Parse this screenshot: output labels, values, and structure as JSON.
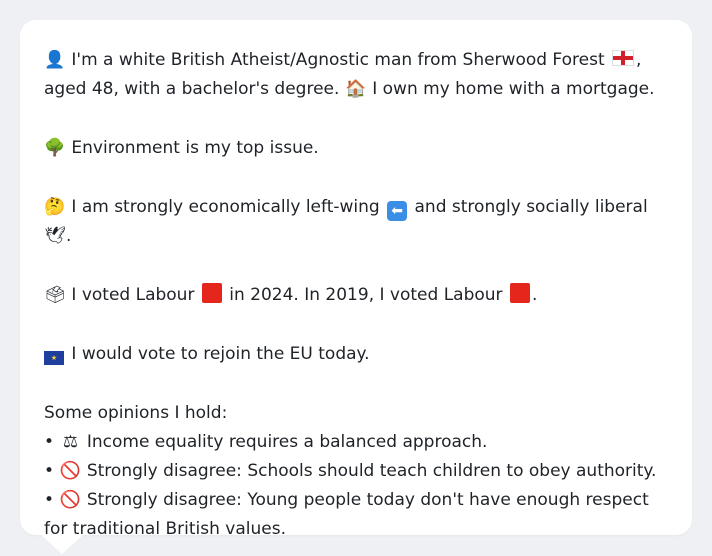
{
  "profile": {
    "intro_a": "I'm a white British Atheist/Agnostic man from Sherwood Forest",
    "intro_b": ", aged 48, with a bachelor's degree.",
    "home": "I own my home with a mortgage.",
    "top_issue": "Environment is my top issue.",
    "ideology_a": "I am strongly economically left-wing",
    "ideology_b": "and strongly socially liberal",
    "ideology_end": ".",
    "vote_a": "I voted Labour",
    "vote_b": "in 2024. In 2019, I voted Labour",
    "vote_end": ".",
    "eu": "I would vote to rejoin the EU today.",
    "opinions_header": "Some opinions I hold:",
    "opinions": [
      "Income equality requires a balanced approach.",
      "Strongly disagree: Schools should teach children to obey authority.",
      "Strongly disagree: Young people today don't have enough respect for traditional British values."
    ]
  },
  "icons": {
    "person": "person-silhouette-icon",
    "england_flag": "england-flag-icon",
    "house": "house-icon",
    "tree": "tree-icon",
    "thinking": "thinking-face-icon",
    "left_arrow": "left-arrow-icon",
    "dove": "dove-icon",
    "ballot": "ballot-box-icon",
    "labour": "red-square-icon",
    "eu_flag": "eu-flag-icon",
    "scales": "balance-scale-icon",
    "no_entry": "prohibited-icon"
  },
  "colors": {
    "labour_red": "#e5261c",
    "background": "#eef0f3",
    "bubble": "#ffffff"
  }
}
